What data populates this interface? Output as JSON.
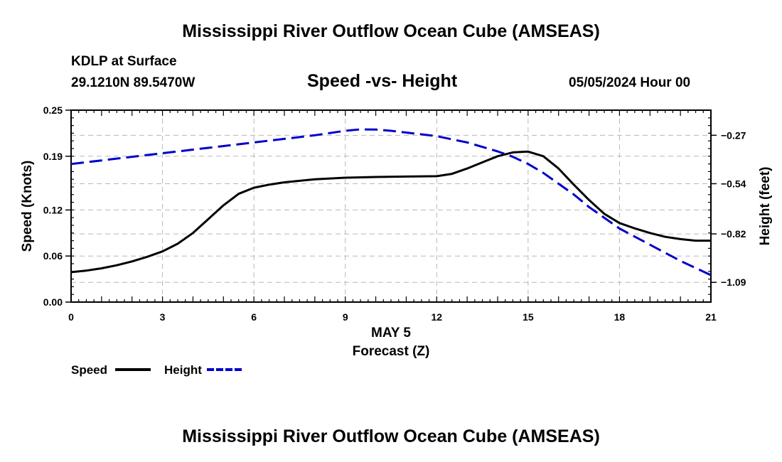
{
  "header": {
    "title": "Mississippi River Outflow Ocean Cube (AMSEAS)",
    "station": "KDLP at Surface",
    "coords": "29.1210N  89.5470W",
    "subtitle": "Speed -vs- Height",
    "datetime": "05/05/2024 Hour 00"
  },
  "footer": {
    "title": "Mississippi River Outflow Ocean Cube (AMSEAS)"
  },
  "legend": {
    "items": [
      {
        "label": "Speed",
        "color": "#000000",
        "style": "solid"
      },
      {
        "label": "Height",
        "color": "#0000cc",
        "style": "dashed"
      }
    ]
  },
  "chart_data": {
    "type": "line",
    "title": "Speed -vs- Height",
    "xlabel": "Forecast (Z)",
    "xsublabel": "MAY 5",
    "xlim": [
      0,
      21
    ],
    "x_ticks": [
      0,
      3,
      6,
      9,
      12,
      15,
      18,
      21
    ],
    "grid": true,
    "y_left": {
      "label": "Speed (Knots)",
      "lim": [
        0,
        0.25
      ],
      "ticks": [
        0.0,
        0.06,
        0.12,
        0.19,
        0.25
      ],
      "tick_labels": [
        "0.00",
        "0.06",
        "0.12",
        "0.19",
        "0.25"
      ]
    },
    "y_right": {
      "label": "Height (feet)",
      "lim": [
        -1.2,
        -0.13
      ],
      "ticks": [
        -0.27,
        -0.54,
        -0.82,
        -1.09
      ],
      "tick_labels": [
        "-0.27",
        "-0.54",
        "-0.82",
        "-1.09"
      ]
    },
    "series": [
      {
        "name": "Speed",
        "axis": "left",
        "color": "#000000",
        "x": [
          0,
          0.5,
          1,
          1.5,
          2,
          2.5,
          3,
          3.5,
          4,
          4.5,
          5,
          5.5,
          6,
          6.5,
          7,
          7.5,
          8,
          8.5,
          9,
          10,
          11,
          12,
          12.5,
          13,
          13.5,
          14,
          14.5,
          15,
          15.5,
          16,
          16.5,
          17,
          17.5,
          18,
          18.5,
          19,
          19.5,
          20,
          20.5,
          21
        ],
        "y": [
          0.039,
          0.041,
          0.044,
          0.048,
          0.053,
          0.059,
          0.066,
          0.076,
          0.09,
          0.108,
          0.126,
          0.141,
          0.149,
          0.153,
          0.156,
          0.158,
          0.16,
          0.161,
          0.162,
          0.163,
          0.1635,
          0.164,
          0.167,
          0.174,
          0.182,
          0.19,
          0.195,
          0.196,
          0.19,
          0.174,
          0.153,
          0.133,
          0.115,
          0.103,
          0.096,
          0.09,
          0.085,
          0.082,
          0.08,
          0.08
        ]
      },
      {
        "name": "Height",
        "axis": "right",
        "color": "#0000cc",
        "x": [
          0,
          1,
          2,
          3,
          4,
          5,
          6,
          7,
          8,
          9,
          9.5,
          10,
          10.5,
          11,
          12,
          13,
          14,
          14.5,
          15,
          15.5,
          16,
          16.5,
          17,
          17.5,
          18,
          19,
          20,
          21
        ],
        "y": [
          -0.43,
          -0.41,
          -0.39,
          -0.37,
          -0.35,
          -0.33,
          -0.31,
          -0.29,
          -0.27,
          -0.245,
          -0.237,
          -0.238,
          -0.245,
          -0.255,
          -0.275,
          -0.31,
          -0.36,
          -0.39,
          -0.43,
          -0.48,
          -0.54,
          -0.6,
          -0.67,
          -0.73,
          -0.79,
          -0.88,
          -0.97,
          -1.05
        ]
      }
    ]
  }
}
